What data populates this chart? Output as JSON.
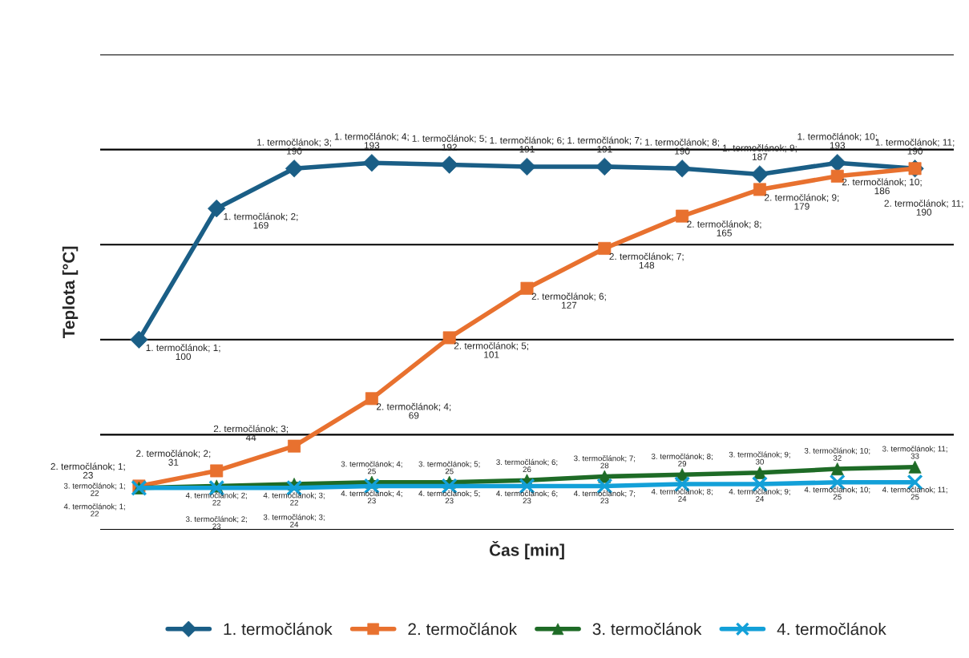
{
  "chart_data": {
    "type": "line",
    "xlabel": "Čas [min]",
    "ylabel": "Teplota [°C]",
    "categories": [
      null,
      null,
      null,
      null,
      null,
      null,
      null,
      null,
      null,
      null,
      null
    ],
    "ylim": [
      0,
      250
    ],
    "yticks": [
      {
        "value": 0,
        "label": null
      },
      {
        "value": 50,
        "label": null
      },
      {
        "value": 100,
        "label": null
      },
      {
        "value": 150,
        "label": null
      },
      {
        "value": 200,
        "label": null
      },
      {
        "value": 250,
        "label": null
      }
    ],
    "tick_labels": false,
    "grid": "y",
    "legend": "bottom",
    "series": [
      {
        "name": "1. termočlánok",
        "color": "#1a5e86",
        "marker": "diamond",
        "values": [
          100,
          169,
          190,
          193,
          192,
          191,
          191,
          190,
          187,
          193,
          190
        ],
        "value_labels": [
          "1. termočlánok; 1;\n100",
          "1. termočlánok; 2;\n169",
          "1. termočlánok; 3;\n190",
          "1. termočlánok; 4;\n193",
          "1. termočlánok; 5;\n192",
          "1. termočlánok; 6;\n191",
          "1. termočlánok; 7;\n191",
          "1. termočlánok; 8;\n190",
          "1. termočlánok; 9;\n187",
          "1. termočlánok; 10;\n193",
          "1. termočlánok; 11;\n190"
        ]
      },
      {
        "name": "2. termočlánok",
        "color": "#e8712f",
        "marker": "square",
        "values": [
          23,
          31,
          44,
          69,
          101,
          127,
          148,
          165,
          179,
          186,
          190
        ],
        "value_labels": [
          "2. termočlánok; 1;\n23",
          "2. termočlánok; 2;\n31",
          "2. termočlánok; 3;\n44",
          "2. termočlánok; 4;\n69",
          "2. termočlánok; 5;\n101",
          "2. termočlánok; 6;\n127",
          "2. termočlánok; 7;\n148",
          "2. termočlánok; 8;\n165",
          "2. termočlánok; 9;\n179",
          "2. termočlánok; 10;\n186",
          "2. termočlánok; 11;\n190"
        ]
      },
      {
        "name": "3. termočlánok",
        "color": "#1e6b26",
        "marker": "triangle",
        "values": [
          22,
          23,
          24,
          25,
          25,
          26,
          28,
          29,
          30,
          32,
          33
        ],
        "value_labels": [
          "3. termočlánok; 1;\n22",
          "3. termočlánok; 2;\n23",
          "3. termočlánok; 3;\n24",
          "3. termočlánok; 4;\n25",
          "3. termočlánok; 5;\n25",
          "3. termočlánok; 6;\n26",
          "3. termočlánok; 7;\n28",
          "3. termočlánok; 8;\n29",
          "3. termočlánok; 9;\n30",
          "3. termočlánok; 10;\n32",
          "3. termočlánok; 11;\n33"
        ]
      },
      {
        "name": "4. termočlánok",
        "color": "#13a0d8",
        "marker": "cross",
        "values": [
          22,
          22,
          22,
          23,
          23,
          23,
          23,
          24,
          24,
          25,
          25
        ],
        "value_labels": [
          "4. termočlánok; 1;\n22",
          "4. termočlánok; 2;\n22",
          "4. termočlánok; 3;\n22",
          "4. termočlánok; 4;\n23",
          "4. termočlánok; 5;\n23",
          "4. termočlánok; 6;\n23",
          "4. termočlánok; 7;\n23",
          "4. termočlánok; 8;\n24",
          "4. termočlánok; 9;\n24",
          "4. termočlánok; 10;\n25",
          "4. termočlánok; 11;\n25"
        ]
      }
    ]
  }
}
